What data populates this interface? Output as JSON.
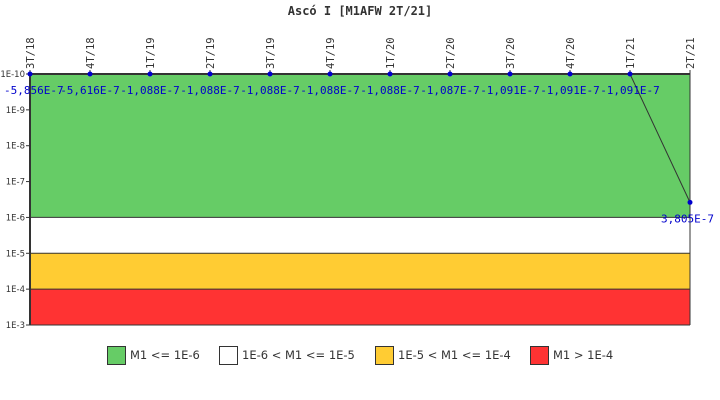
{
  "title": "Ascó I [M1AFW 2T/21]",
  "colors": {
    "green": "#66cc66",
    "white": "#ffffff",
    "yellow": "#ffcc33",
    "red": "#ff3333",
    "point": "#0000cc",
    "label": "#0000cc",
    "axis": "#333333"
  },
  "legend": [
    {
      "label": "M1 <= 1E-6",
      "color": "#66cc66"
    },
    {
      "label": "1E-6 < M1 <= 1E-5",
      "color": "#ffffff"
    },
    {
      "label": "1E-5 < M1 <= 1E-4",
      "color": "#ffcc33"
    },
    {
      "label": "M1 > 1E-4",
      "color": "#ff3333"
    }
  ],
  "chart_data": {
    "type": "line",
    "title": "Ascó I [M1AFW 2T/21]",
    "xlabel": "",
    "ylabel": "",
    "yscale": "log",
    "y_inverted": true,
    "ylim": [
      1e-10,
      0.001
    ],
    "y_ticks": [
      "1E-10",
      "1E-9",
      "1E-8",
      "1E-7",
      "1E-6",
      "1E-5",
      "1E-4",
      "1E-3"
    ],
    "categories": [
      "3T/18",
      "4T/18",
      "1T/19",
      "2T/19",
      "3T/19",
      "4T/19",
      "1T/20",
      "2T/20",
      "3T/20",
      "4T/20",
      "1T/21",
      "2T/21"
    ],
    "series": [
      {
        "name": "M1AFW",
        "values": [
          -5.856e-07,
          -5.616e-07,
          -1.088e-07,
          -1.088e-07,
          -1.088e-07,
          -1.088e-07,
          -1.088e-07,
          -1.087e-07,
          -1.091e-07,
          -1.091e-07,
          -1.091e-07,
          3.805e-07
        ],
        "labels": [
          "-5,856E-7",
          "-5,616E-7",
          "-1,088E-7",
          "-1,088E-7",
          "-1,088E-7",
          "-1,088E-7",
          "-1,088E-7",
          "-1,087E-7",
          "-1,091E-7",
          "-1,091E-7",
          "-1,091E-7",
          "3,805E-7"
        ]
      }
    ],
    "bands": [
      {
        "from": 1e-10,
        "to": 1e-06,
        "color": "#66cc66",
        "label": "M1 <= 1E-6"
      },
      {
        "from": 1e-06,
        "to": 1e-05,
        "color": "#ffffff",
        "label": "1E-6 < M1 <= 1E-5"
      },
      {
        "from": 1e-05,
        "to": 0.0001,
        "color": "#ffcc33",
        "label": "1E-5 < M1 <= 1E-4"
      },
      {
        "from": 0.0001,
        "to": 0.001,
        "color": "#ff3333",
        "label": "M1 > 1E-4"
      }
    ],
    "legend_position": "bottom",
    "grid": false
  }
}
